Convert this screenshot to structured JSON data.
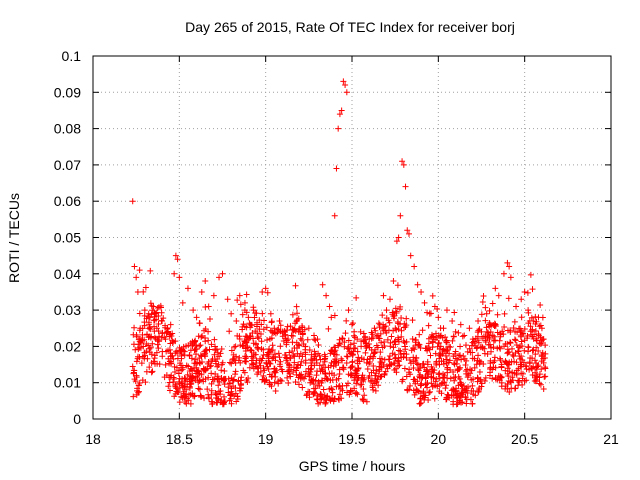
{
  "chart_data": {
    "type": "scatter",
    "title": "Day 265 of 2015, Rate Of TEC Index for receiver borj",
    "xlabel": "GPS time / hours",
    "ylabel": "ROTI / TECUs",
    "xlim": [
      18,
      21
    ],
    "ylim": [
      0,
      0.1
    ],
    "x_ticks": [
      "18",
      "18.5",
      "19",
      "19.5",
      "20",
      "20.5",
      "21"
    ],
    "y_ticks": [
      "0",
      "0.01",
      "0.02",
      "0.03",
      "0.04",
      "0.05",
      "0.06",
      "0.07",
      "0.08",
      "0.09",
      "0.1"
    ],
    "grid": true,
    "marker": "plus",
    "color": "#ff0000",
    "series": [
      {
        "points": [
          [
            18.23,
            0.06
          ],
          [
            18.24,
            0.042
          ],
          [
            18.25,
            0.039
          ],
          [
            18.26,
            0.035
          ],
          [
            18.27,
            0.041
          ],
          [
            18.3,
            0.03
          ],
          [
            18.33,
            0.028
          ],
          [
            18.35,
            0.031
          ],
          [
            18.37,
            0.025
          ],
          [
            18.4,
            0.027
          ],
          [
            18.42,
            0.022
          ],
          [
            18.45,
            0.026
          ],
          [
            18.48,
            0.045
          ],
          [
            18.49,
            0.044
          ],
          [
            18.47,
            0.04
          ],
          [
            18.5,
            0.039
          ],
          [
            18.52,
            0.032
          ],
          [
            18.55,
            0.036
          ],
          [
            18.58,
            0.03
          ],
          [
            18.6,
            0.028
          ],
          [
            18.63,
            0.035
          ],
          [
            18.65,
            0.038
          ],
          [
            18.67,
            0.031
          ],
          [
            18.7,
            0.034
          ],
          [
            18.73,
            0.039
          ],
          [
            18.75,
            0.04
          ],
          [
            18.78,
            0.033
          ],
          [
            18.8,
            0.029
          ],
          [
            18.83,
            0.027
          ],
          [
            18.85,
            0.034
          ],
          [
            18.88,
            0.032
          ],
          [
            18.9,
            0.028
          ],
          [
            18.93,
            0.03
          ],
          [
            18.95,
            0.026
          ],
          [
            18.98,
            0.035
          ],
          [
            19.0,
            0.036
          ],
          [
            19.03,
            0.029
          ],
          [
            19.05,
            0.025
          ],
          [
            19.08,
            0.027
          ],
          [
            19.1,
            0.024
          ],
          [
            19.13,
            0.022
          ],
          [
            19.15,
            0.023
          ],
          [
            19.18,
            0.021
          ],
          [
            19.2,
            0.024
          ],
          [
            19.23,
            0.02
          ],
          [
            19.25,
            0.025
          ],
          [
            19.28,
            0.023
          ],
          [
            19.3,
            0.022
          ],
          [
            19.33,
            0.037
          ],
          [
            19.35,
            0.034
          ],
          [
            19.37,
            0.031
          ],
          [
            19.38,
            0.028
          ],
          [
            19.4,
            0.056
          ],
          [
            19.41,
            0.069
          ],
          [
            19.42,
            0.08
          ],
          [
            19.43,
            0.084
          ],
          [
            19.44,
            0.085
          ],
          [
            19.45,
            0.093
          ],
          [
            19.46,
            0.092
          ],
          [
            19.47,
            0.09
          ],
          [
            19.48,
            0.03
          ],
          [
            19.5,
            0.026
          ],
          [
            19.53,
            0.022
          ],
          [
            19.55,
            0.024
          ],
          [
            19.58,
            0.02
          ],
          [
            19.6,
            0.022
          ],
          [
            19.63,
            0.025
          ],
          [
            19.65,
            0.023
          ],
          [
            19.68,
            0.026
          ],
          [
            19.7,
            0.03
          ],
          [
            19.72,
            0.033
          ],
          [
            19.74,
            0.038
          ],
          [
            19.76,
            0.049
          ],
          [
            19.77,
            0.05
          ],
          [
            19.78,
            0.056
          ],
          [
            19.79,
            0.071
          ],
          [
            19.8,
            0.07
          ],
          [
            19.81,
            0.064
          ],
          [
            19.82,
            0.052
          ],
          [
            19.83,
            0.051
          ],
          [
            19.84,
            0.045
          ],
          [
            19.86,
            0.042
          ],
          [
            19.88,
            0.037
          ],
          [
            19.9,
            0.035
          ],
          [
            19.92,
            0.032
          ],
          [
            19.95,
            0.029
          ],
          [
            19.98,
            0.031
          ],
          [
            20.0,
            0.028
          ],
          [
            20.03,
            0.025
          ],
          [
            20.05,
            0.03
          ],
          [
            20.08,
            0.027
          ],
          [
            20.1,
            0.024
          ],
          [
            20.13,
            0.026
          ],
          [
            20.15,
            0.023
          ],
          [
            20.18,
            0.025
          ],
          [
            20.2,
            0.022
          ],
          [
            20.23,
            0.027
          ],
          [
            20.25,
            0.024
          ],
          [
            20.28,
            0.029
          ],
          [
            20.3,
            0.026
          ],
          [
            20.33,
            0.036
          ],
          [
            20.35,
            0.034
          ],
          [
            20.38,
            0.04
          ],
          [
            20.4,
            0.043
          ],
          [
            20.41,
            0.042
          ],
          [
            20.42,
            0.039
          ],
          [
            20.45,
            0.031
          ],
          [
            20.48,
            0.033
          ],
          [
            20.5,
            0.035
          ],
          [
            20.52,
            0.03
          ],
          [
            20.55,
            0.027
          ],
          [
            20.58,
            0.028
          ],
          [
            20.6,
            0.025
          ],
          [
            20.61,
            0.022
          ]
        ]
      }
    ]
  }
}
